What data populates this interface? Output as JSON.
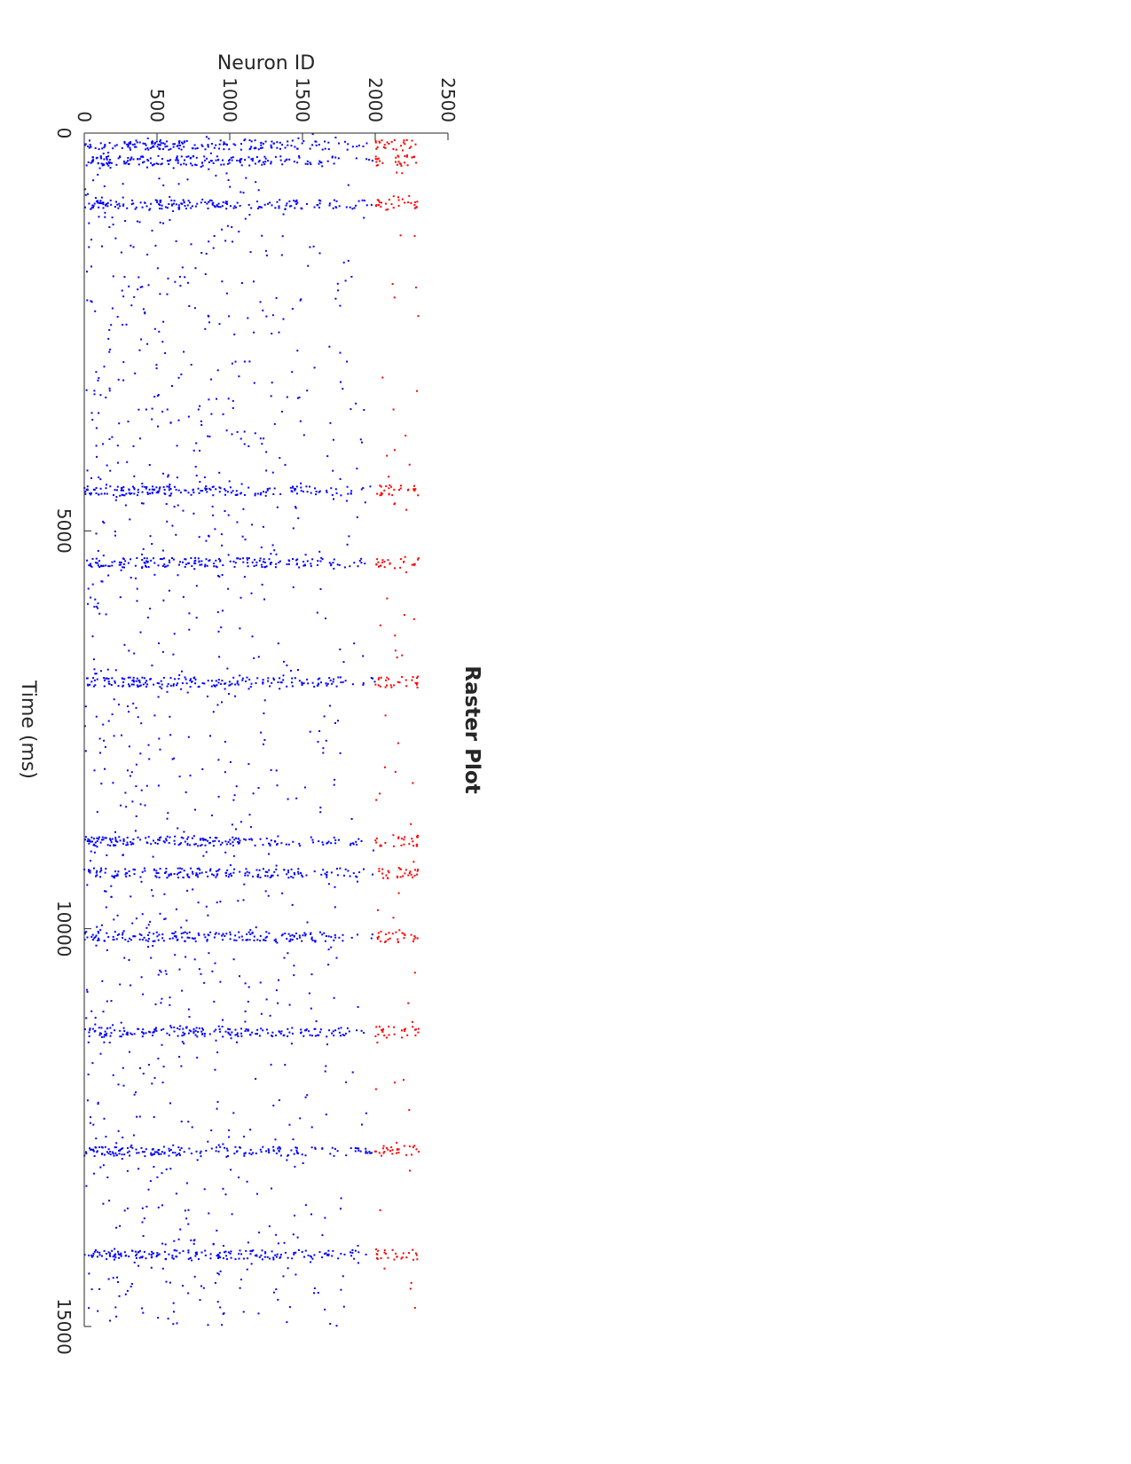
{
  "chart_data": {
    "type": "scatter",
    "subtype": "raster",
    "orientation": "rotated-90-clockwise",
    "title": "Raster Plot",
    "xlabel": "Time (ms)",
    "ylabel": "Neuron ID",
    "xlim": [
      0,
      15000
    ],
    "ylim": [
      0,
      2500
    ],
    "xticks": [
      0,
      5000,
      10000,
      15000
    ],
    "yticks": [
      0,
      500,
      1000,
      1500,
      2000,
      2500
    ],
    "grid": false,
    "legend": "none",
    "marker": "dot",
    "burst_times_ms": [
      150,
      350,
      900,
      4500,
      5400,
      6900,
      8900,
      9300,
      10100,
      11300,
      12800,
      14100
    ],
    "series": [
      {
        "group": "excitatory",
        "neuron_range": [
          0,
          2000
        ],
        "color": "#0000ff"
      },
      {
        "group": "inhibitory",
        "neuron_range": [
          2000,
          2300
        ],
        "color": "#ff0000"
      }
    ]
  }
}
